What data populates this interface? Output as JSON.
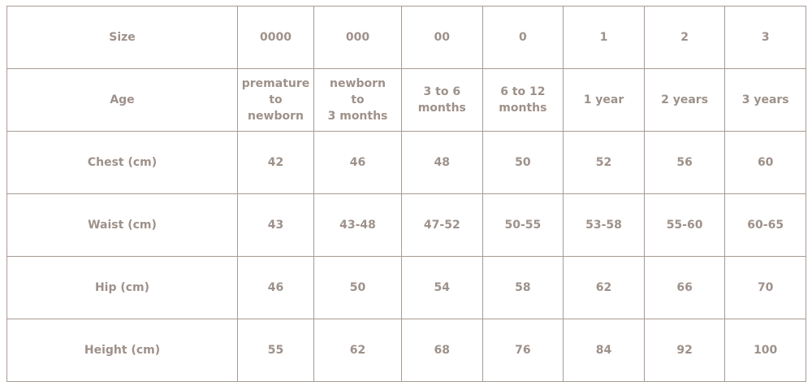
{
  "table": {
    "rows": [
      {
        "label": "Size",
        "cells": [
          "0000",
          "000",
          "00",
          "0",
          "1",
          "2",
          "3"
        ]
      },
      {
        "label": "Age",
        "cells": [
          [
            "premature",
            "to",
            "newborn"
          ],
          [
            "newborn",
            "to",
            "3 months"
          ],
          [
            "3 to 6",
            "months"
          ],
          [
            "6 to 12",
            "months"
          ],
          [
            "1 year"
          ],
          [
            "2 years"
          ],
          [
            "3 years"
          ]
        ]
      },
      {
        "label": "Chest (cm)",
        "cells": [
          "42",
          "46",
          "48",
          "50",
          "52",
          "56",
          "60"
        ]
      },
      {
        "label": "Waist (cm)",
        "cells": [
          "43",
          "43-48",
          "47-52",
          "50-55",
          "53-58",
          "55-60",
          "60-65"
        ]
      },
      {
        "label": "Hip (cm)",
        "cells": [
          "46",
          "50",
          "54",
          "58",
          "62",
          "66",
          "70"
        ]
      },
      {
        "label": "Height (cm)",
        "cells": [
          "55",
          "62",
          "68",
          "76",
          "84",
          "92",
          "100"
        ]
      }
    ]
  }
}
